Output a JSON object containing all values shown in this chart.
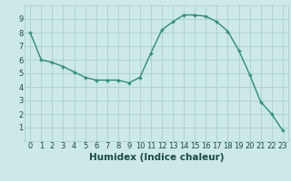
{
  "x": [
    0,
    1,
    2,
    3,
    4,
    5,
    6,
    7,
    8,
    9,
    10,
    11,
    12,
    13,
    14,
    15,
    16,
    17,
    18,
    19,
    20,
    21,
    22,
    23
  ],
  "y": [
    8.0,
    6.0,
    5.8,
    5.5,
    5.1,
    4.7,
    4.5,
    4.5,
    4.5,
    4.3,
    4.7,
    6.5,
    8.2,
    8.8,
    9.3,
    9.3,
    9.2,
    8.8,
    8.1,
    6.7,
    4.9,
    2.9,
    2.0,
    0.8
  ],
  "xlabel": "Humidex (Indice chaleur)",
  "ylim": [
    0,
    10
  ],
  "xlim": [
    -0.5,
    23.5
  ],
  "line_color": "#2e8b74",
  "marker_color": "#2e8b74",
  "bg_color": "#cce9e7",
  "grid_color": "#aacfcc",
  "axis_label_color": "#1a4a44",
  "tick_label_color": "#1a4a44",
  "xlabel_fontsize": 7.5,
  "tick_fontsize": 6.0,
  "yticks": [
    1,
    2,
    3,
    4,
    5,
    6,
    7,
    8,
    9
  ],
  "xticks": [
    0,
    1,
    2,
    3,
    4,
    5,
    6,
    7,
    8,
    9,
    10,
    11,
    12,
    13,
    14,
    15,
    16,
    17,
    18,
    19,
    20,
    21,
    22,
    23
  ]
}
